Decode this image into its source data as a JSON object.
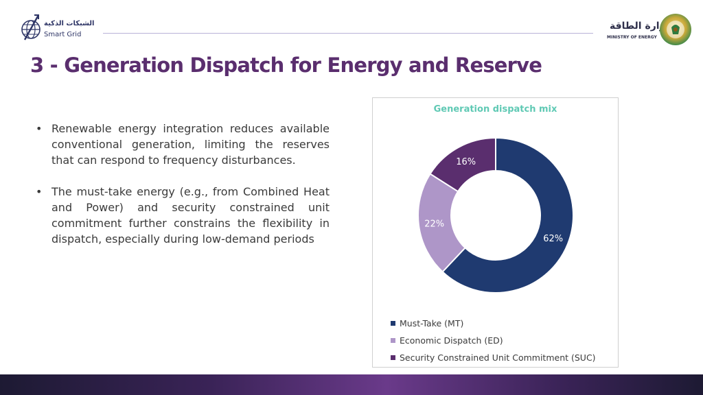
{
  "header": {
    "left_logo_arabic": "الشبكات الذكية",
    "left_logo_english": "Smart Grid",
    "right_logo_arabic": "وزارة الطاقة",
    "right_logo_english": "MINISTRY OF ENERGY"
  },
  "title": "3 - Generation Dispatch for Energy and Reserve",
  "bullets": [
    {
      "marker": "•",
      "text": "Renewable energy integration reduces available conventional generation, limiting the reserves that can respond to frequency disturbances."
    },
    {
      "marker": "•",
      "text": "The must-take energy (e.g., from Combined Heat and Power) and security constrained unit commitment further constrains the flexibility in dispatch, especially during low-demand periods"
    }
  ],
  "colors": {
    "title": "#5a2e6e",
    "chart_title": "#5fc9b4",
    "must_take": "#1f3a70",
    "economic_dispatch": "#ae96c8",
    "suc": "#5a2e6e"
  },
  "chart_data": {
    "type": "pie",
    "donut": true,
    "title": "Generation dispatch mix",
    "legend_position": "bottom",
    "categories": [
      "Must-Take (MT)",
      "Economic Dispatch (ED)",
      "Security Constrained Unit Commitment (SUC)"
    ],
    "values": [
      62,
      22,
      16
    ],
    "data_labels": [
      "62%",
      "22%",
      "16%"
    ],
    "unit": "%",
    "colors": [
      "#1f3a70",
      "#ae96c8",
      "#5a2e6e"
    ]
  }
}
